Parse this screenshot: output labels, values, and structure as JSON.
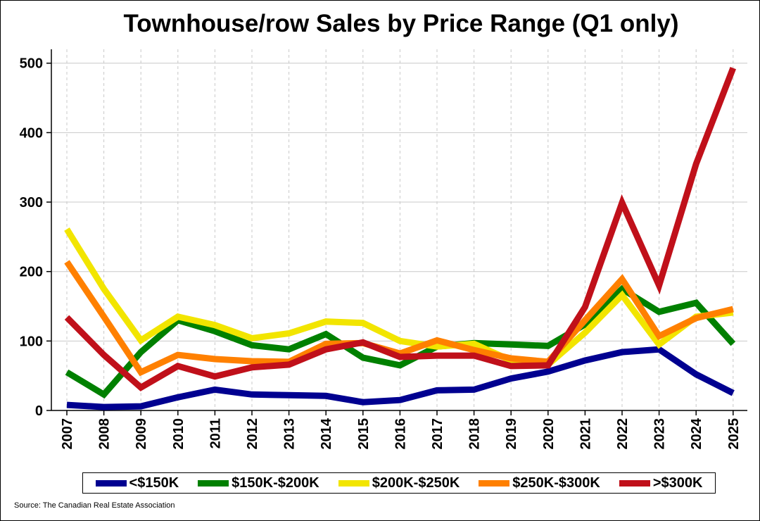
{
  "chart_data": {
    "type": "line",
    "title": "Townhouse/row Sales by Price Range (Q1 only)",
    "xlabel": "",
    "ylabel": "",
    "x": [
      "2007",
      "2008",
      "2009",
      "2010",
      "2011",
      "2012",
      "2013",
      "2014",
      "2015",
      "2016",
      "2017",
      "2018",
      "2019",
      "2020",
      "2021",
      "2022",
      "2023",
      "2024",
      "2025"
    ],
    "ylim": [
      0,
      520
    ],
    "yticks": [
      0,
      100,
      200,
      300,
      400,
      500
    ],
    "grid": true,
    "legend_position": "bottom",
    "series": [
      {
        "name": "<$150K",
        "color": "#000090",
        "values": [
          8,
          5,
          6,
          19,
          30,
          23,
          22,
          21,
          12,
          15,
          29,
          30,
          46,
          56,
          72,
          84,
          88,
          52,
          25
        ]
      },
      {
        "name": "$150K-$200K",
        "color": "#008000",
        "values": [
          55,
          23,
          84,
          130,
          114,
          94,
          88,
          110,
          76,
          65,
          92,
          97,
          95,
          93,
          124,
          175,
          142,
          155,
          96
        ]
      },
      {
        "name": "$200K-$250K",
        "color": "#f2e500",
        "values": [
          261,
          175,
          101,
          135,
          123,
          104,
          111,
          128,
          126,
          100,
          92,
          96,
          72,
          66,
          112,
          166,
          95,
          135,
          141
        ]
      },
      {
        "name": "$250K-$300K",
        "color": "#ff8000",
        "values": [
          214,
          135,
          55,
          80,
          74,
          71,
          70,
          96,
          97,
          82,
          101,
          87,
          75,
          70,
          130,
          189,
          107,
          133,
          146
        ]
      },
      {
        "name": ">$300K",
        "color": "#c0101a",
        "values": [
          134,
          80,
          33,
          64,
          49,
          62,
          66,
          88,
          98,
          77,
          79,
          79,
          64,
          65,
          149,
          299,
          180,
          355,
          493
        ]
      }
    ]
  },
  "source": "Source: The Canadian Real Estate Association"
}
